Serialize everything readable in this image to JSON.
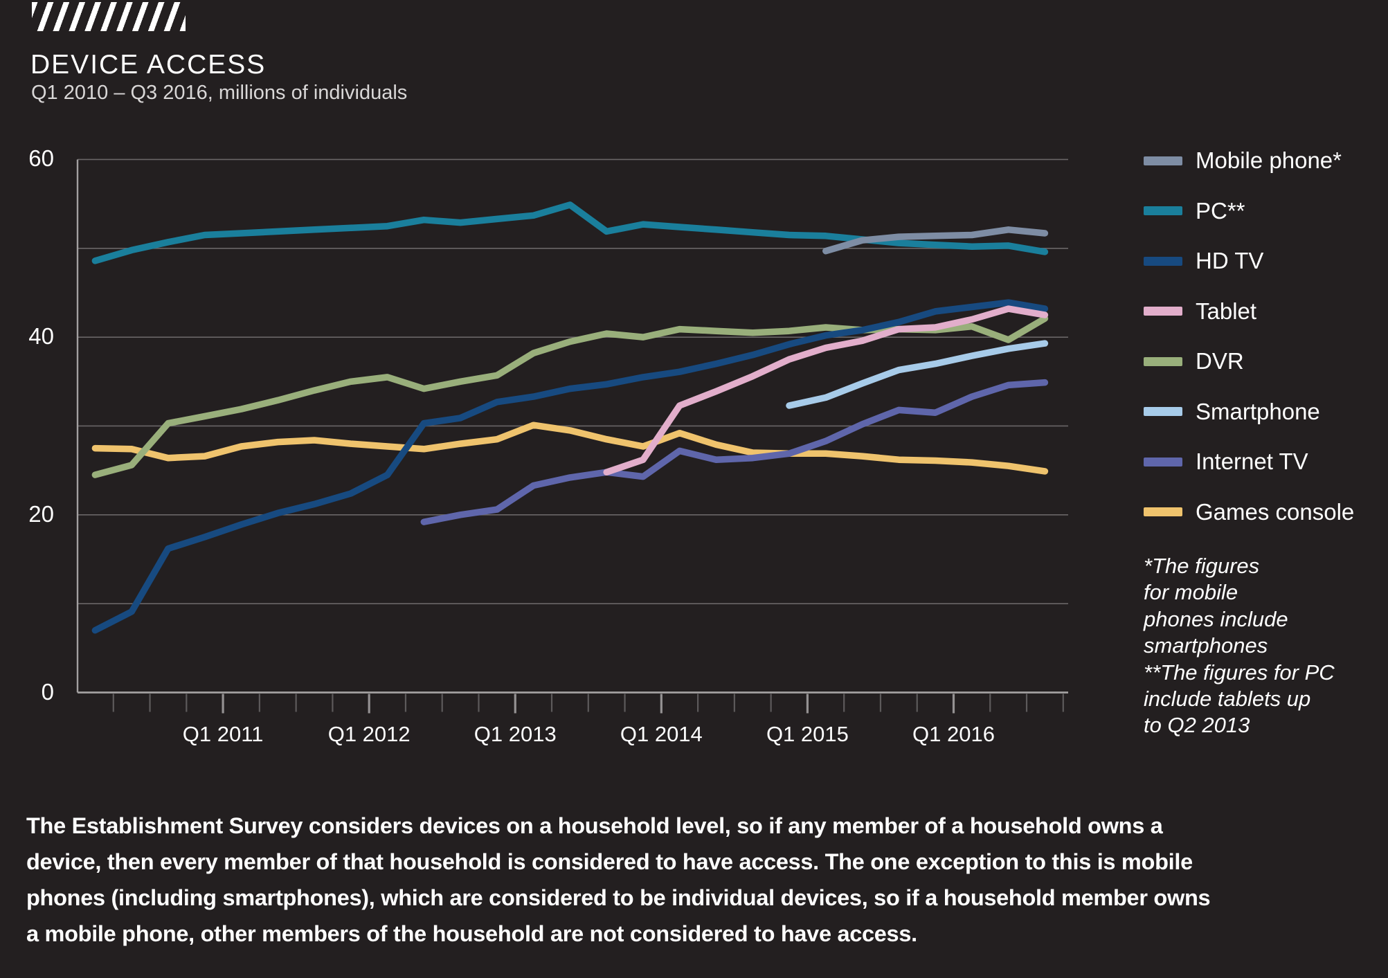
{
  "header": {
    "title": "DEVICE ACCESS",
    "subtitle": "Q1 2010 – Q3 2016, millions of individuals"
  },
  "colors": {
    "background": "#231F20",
    "grid": "#6A6667",
    "axis": "#A3A0A1",
    "tick_minor": "#5D5A5B",
    "tick_major": "#949192",
    "text": "#FFFFFF",
    "subtitle_text": "#D9D7D7"
  },
  "footnote": "*The figures\nfor mobile\nphones include\nsmartphones\n**The figures for PC\ninclude tablets up\nto Q2 2013",
  "footer": "The Establishment Survey considers devices on a household level, so if any member of a household owns a\ndevice, then every member of that household is considered to have access. The one exception to this is mobile\nphones (including smartphones), which are considered to be individual devices, so if a household member owns\na mobile phone, other members of the household are not considered to have access.",
  "chart_data": {
    "type": "line",
    "title": "DEVICE ACCESS",
    "subtitle": "Q1 2010 – Q3 2016, millions of individuals",
    "ylabel": "millions of individuals",
    "ylim": [
      0,
      60
    ],
    "grid": "horizontal every 10",
    "legend_position": "right",
    "y_tick_labels": [
      "60",
      "40",
      "20",
      "0"
    ],
    "y_tick_values": [
      60,
      40,
      20,
      0
    ],
    "y_gridline_values": [
      60,
      50,
      40,
      30,
      20,
      10
    ],
    "x_quarters": [
      "Q1 2010",
      "Q2 2010",
      "Q3 2010",
      "Q4 2010",
      "Q1 2011",
      "Q2 2011",
      "Q3 2011",
      "Q4 2011",
      "Q1 2012",
      "Q2 2012",
      "Q3 2012",
      "Q4 2012",
      "Q1 2013",
      "Q2 2013",
      "Q3 2013",
      "Q4 2013",
      "Q1 2014",
      "Q2 2014",
      "Q3 2014",
      "Q4 2014",
      "Q1 2015",
      "Q2 2015",
      "Q3 2015",
      "Q4 2015",
      "Q1 2016",
      "Q2 2016",
      "Q3 2016"
    ],
    "x_year_labels": [
      {
        "label": "Q1 2011",
        "boundary_tick": 3
      },
      {
        "label": "Q1 2012",
        "boundary_tick": 7
      },
      {
        "label": "Q1 2013",
        "boundary_tick": 11
      },
      {
        "label": "Q1 2014",
        "boundary_tick": 15
      },
      {
        "label": "Q1 2015",
        "boundary_tick": 19
      },
      {
        "label": "Q1 2016",
        "boundary_tick": 23
      }
    ],
    "series": [
      {
        "name": "Mobile phone*",
        "color": "#7E8DA4",
        "start": 20,
        "z": 8,
        "values": [
          49.7,
          50.9,
          51.3,
          51.4,
          51.5,
          52.1,
          51.7
        ]
      },
      {
        "name": "PC**",
        "color": "#1A7F9C",
        "start": 0,
        "z": 1,
        "values": [
          48.6,
          49.8,
          50.7,
          51.5,
          51.7,
          51.9,
          52.1,
          52.3,
          52.5,
          53.2,
          52.9,
          53.3,
          53.7,
          54.9,
          51.9,
          52.7,
          52.4,
          52.1,
          51.8,
          51.5,
          51.4,
          51.0,
          50.6,
          50.4,
          50.2,
          50.3,
          49.6
        ]
      },
      {
        "name": "HD TV",
        "color": "#174A80",
        "start": 0,
        "z": 5,
        "values": [
          7.0,
          9.1,
          16.2,
          17.5,
          18.9,
          20.2,
          21.2,
          22.4,
          24.5,
          30.3,
          30.9,
          32.7,
          33.3,
          34.2,
          34.7,
          35.5,
          36.1,
          37.0,
          38.0,
          39.2,
          40.2,
          40.8,
          41.7,
          42.9,
          43.4,
          43.9,
          43.2
        ]
      },
      {
        "name": "Tablet",
        "color": "#E2AECB",
        "start": 14,
        "z": 6,
        "values": [
          24.8,
          26.2,
          32.3,
          33.9,
          35.6,
          37.5,
          38.8,
          39.6,
          40.9,
          41.1,
          42.0,
          43.2,
          42.5
        ]
      },
      {
        "name": "DVR",
        "color": "#99AF7B",
        "start": 0,
        "z": 4,
        "values": [
          24.5,
          25.6,
          30.3,
          31.1,
          31.9,
          32.9,
          34.0,
          35.0,
          35.5,
          34.2,
          35.0,
          35.7,
          38.2,
          39.5,
          40.4,
          40.0,
          40.9,
          40.7,
          40.5,
          40.7,
          41.1,
          40.8,
          40.9,
          40.8,
          41.2,
          39.7,
          42.1
        ]
      },
      {
        "name": "Smartphone",
        "color": "#A7CBE9",
        "start": 19,
        "z": 7,
        "values": [
          32.3,
          33.2,
          34.8,
          36.3,
          37.0,
          37.9,
          38.7,
          39.3
        ]
      },
      {
        "name": "Internet TV",
        "color": "#5F66AB",
        "start": 9,
        "z": 3,
        "values": [
          19.2,
          20.0,
          20.6,
          23.3,
          24.2,
          24.8,
          24.3,
          27.2,
          26.2,
          26.4,
          26.9,
          28.3,
          30.2,
          31.8,
          31.5,
          33.3,
          34.6,
          34.9
        ]
      },
      {
        "name": "Games console",
        "color": "#EFC36D",
        "start": 0,
        "z": 2,
        "values": [
          27.5,
          27.4,
          26.4,
          26.6,
          27.7,
          28.2,
          28.4,
          28.0,
          27.7,
          27.4,
          28.0,
          28.5,
          30.1,
          29.5,
          28.5,
          27.7,
          29.2,
          27.9,
          27.0,
          26.9,
          26.9,
          26.6,
          26.2,
          26.1,
          25.9,
          25.5,
          24.9
        ]
      }
    ]
  }
}
